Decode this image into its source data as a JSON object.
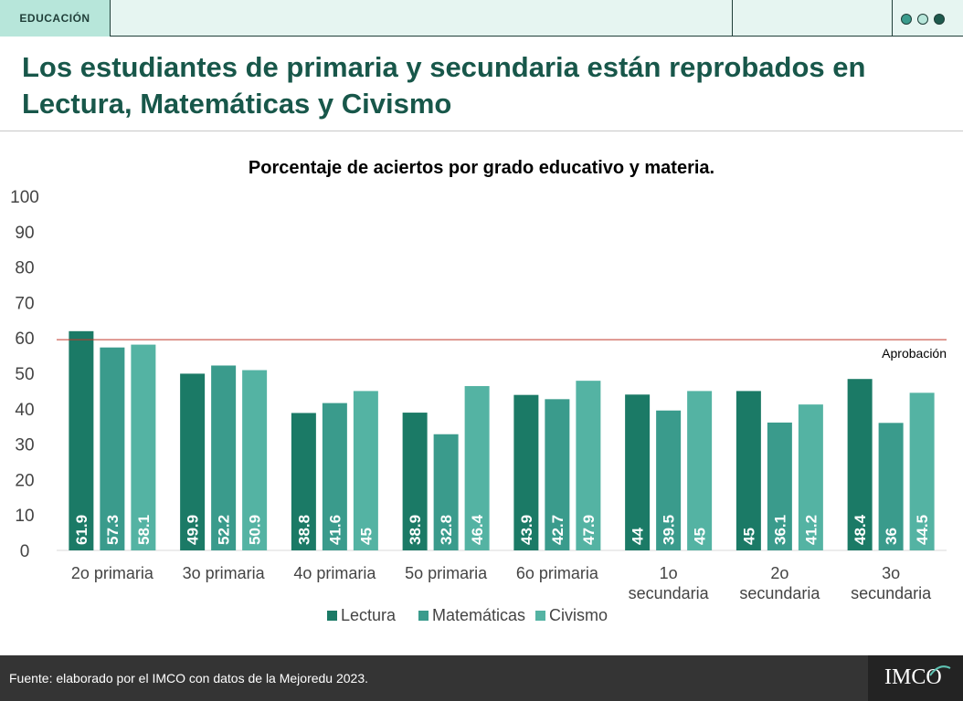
{
  "header": {
    "section_tag": "EDUCACIÓN",
    "title": "Los estudiantes de primaria y secundaria están reprobados en Lectura, Matemáticas y Civismo"
  },
  "chart_data": {
    "type": "bar",
    "title": "Porcentaje de aciertos por grado educativo y materia.",
    "categories": [
      "2o primaria",
      "3o primaria",
      "4o primaria",
      "5o  primaria",
      "6o primaria",
      "1o secundaria",
      "2o secundaria",
      "3o secundaria"
    ],
    "category_lines": [
      [
        "2o primaria"
      ],
      [
        "3o primaria"
      ],
      [
        "4o primaria"
      ],
      [
        "5o  primaria"
      ],
      [
        "6o primaria"
      ],
      [
        "1o",
        "secundaria"
      ],
      [
        "2o",
        "secundaria"
      ],
      [
        "3o",
        "secundaria"
      ]
    ],
    "series": [
      {
        "name": "Lectura",
        "color": "#1b7a66",
        "values": [
          61.9,
          49.9,
          38.8,
          38.9,
          43.9,
          44,
          45,
          48.4
        ]
      },
      {
        "name": "Matemáticas",
        "color": "#3a9b8c",
        "values": [
          57.3,
          52.2,
          41.6,
          32.8,
          42.7,
          39.5,
          36.1,
          36
        ]
      },
      {
        "name": "Civismo",
        "color": "#54b3a3",
        "values": [
          58.1,
          50.9,
          45,
          46.4,
          47.9,
          45,
          41.2,
          44.5
        ]
      }
    ],
    "ylim": [
      0,
      100
    ],
    "yticks": [
      0,
      10,
      20,
      30,
      40,
      50,
      60,
      70,
      80,
      90,
      100
    ],
    "grid": false,
    "legend_position": "bottom",
    "reference_line": {
      "value": 59.5,
      "label": "Aprobación",
      "color": "#c0392b"
    }
  },
  "footer": {
    "source": "Fuente: elaborado por el IMCO con datos de la Mejoredu 2023.",
    "logo": "IMCO"
  }
}
